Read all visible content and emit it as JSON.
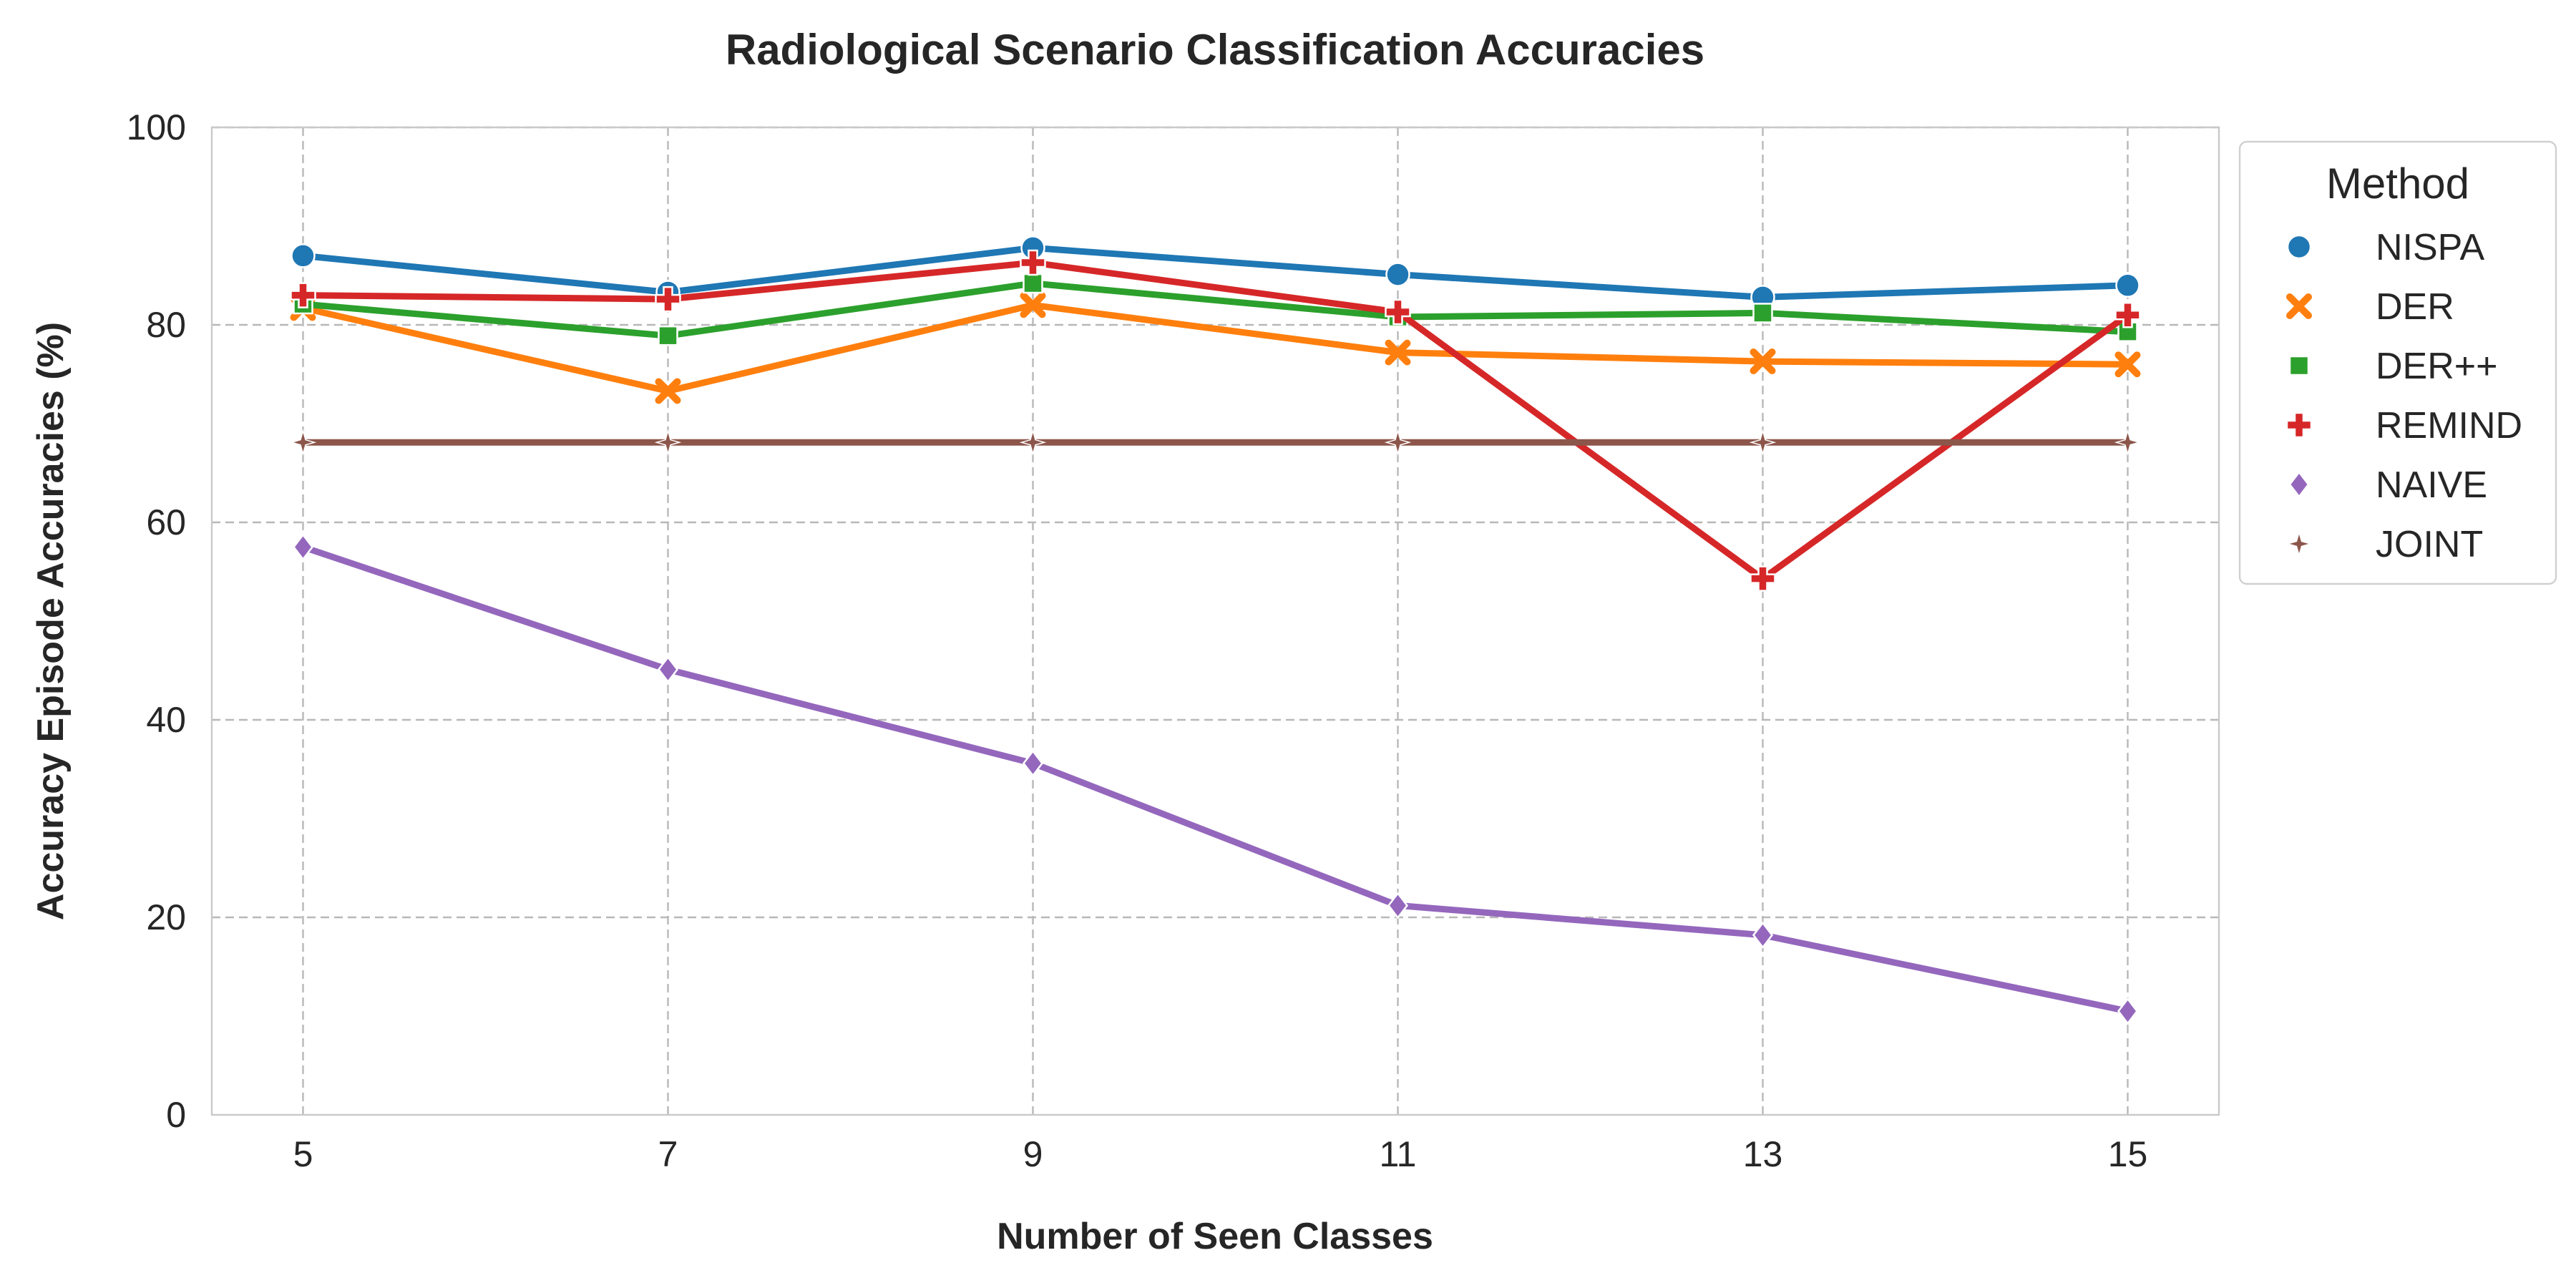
{
  "chart_data": {
    "type": "line",
    "title": "Radiological Scenario Classification Accuracies",
    "xlabel": "Number of Seen Classes",
    "ylabel": "Accuracy Episode Accuracies (%)",
    "x": [
      5,
      7,
      9,
      11,
      13,
      15
    ],
    "xticks": [
      "5",
      "7",
      "9",
      "11",
      "13",
      "15"
    ],
    "xlim": [
      4.5,
      15.5
    ],
    "yticks": [
      "0",
      "20",
      "40",
      "60",
      "80",
      "100"
    ],
    "ylim": [
      0,
      100
    ],
    "grid": true,
    "legend": {
      "title": "Method",
      "placement": "outside-right-top"
    },
    "series": [
      {
        "name": "NISPA",
        "color": "#1f77b4",
        "marker": "circle",
        "values": [
          87.0,
          83.3,
          87.8,
          85.1,
          82.8,
          84.0
        ]
      },
      {
        "name": "DER",
        "color": "#ff7f0e",
        "marker": "x",
        "values": [
          81.7,
          73.3,
          82.0,
          77.2,
          76.3,
          76.0
        ]
      },
      {
        "name": "DER++",
        "color": "#2ca02c",
        "marker": "square",
        "values": [
          82.1,
          78.9,
          84.2,
          80.8,
          81.2,
          79.3
        ]
      },
      {
        "name": "REMIND",
        "color": "#d62728",
        "marker": "plus",
        "values": [
          83.0,
          82.6,
          86.3,
          81.3,
          54.3,
          81.0
        ]
      },
      {
        "name": "NAIVE",
        "color": "#9467bd",
        "marker": "diamond",
        "values": [
          57.5,
          45.1,
          35.6,
          21.2,
          18.2,
          10.5
        ]
      },
      {
        "name": "JOINT",
        "color": "#8c564b",
        "marker": "star",
        "values": [
          68.1,
          68.1,
          68.1,
          68.1,
          68.1,
          68.1
        ]
      }
    ]
  }
}
